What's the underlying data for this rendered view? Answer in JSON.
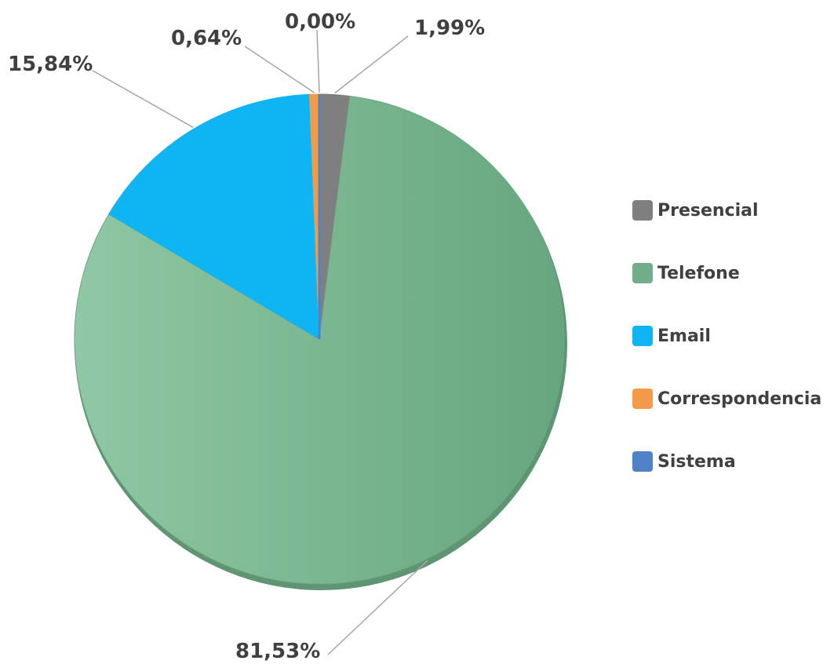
{
  "chart_data": {
    "type": "pie",
    "categories": [
      "Presencial",
      "Telefone",
      "Email",
      "Correspondencia",
      "Sistema"
    ],
    "values": [
      1.99,
      81.53,
      15.84,
      0.64,
      0.0
    ],
    "data_labels": [
      "1,99%",
      "81,53%",
      "15,84%",
      "0,64%",
      "0,00%"
    ],
    "colors": [
      "#7f7f7f",
      "#72ae8a",
      "#0fb4f3",
      "#f39a48",
      "#4f81c7"
    ],
    "legend_position": "right"
  }
}
